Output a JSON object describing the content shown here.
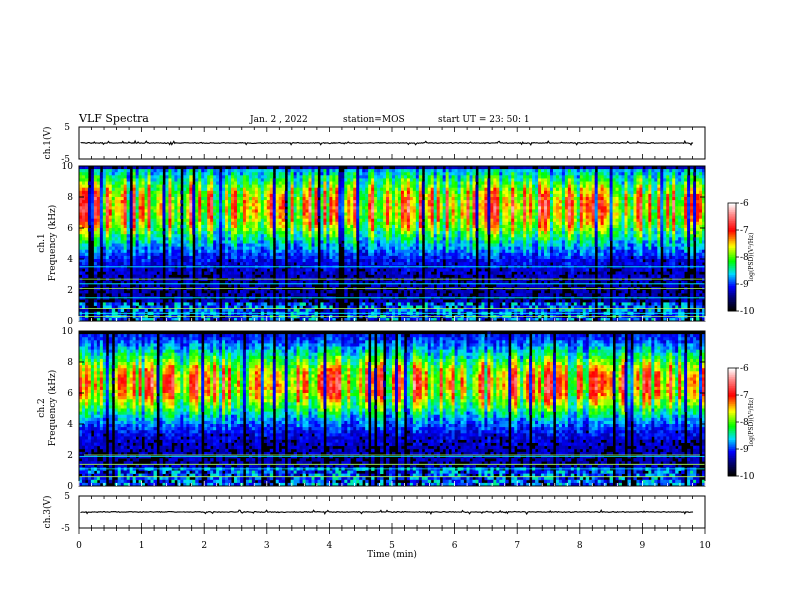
{
  "header": {
    "title": "VLF Spectra",
    "date": "Jan. 2 , 2022",
    "station": "station=MOS",
    "start_ut": "start UT =  23: 50: 1"
  },
  "colors": {
    "background": "#ffffff",
    "axes": "#000000",
    "colormap": [
      "#ffffff",
      "#ff9999",
      "#ff0000",
      "#ffff00",
      "#00ff00",
      "#00ffff",
      "#0000ff",
      "#000000"
    ]
  },
  "chart_data": [
    {
      "type": "line",
      "ylabel": "ch.1(V)",
      "ylim": [
        -5,
        5
      ],
      "yticks": [
        "5",
        "-5"
      ],
      "values_note_level": 0,
      "grid": false
    },
    {
      "type": "heatmap",
      "ylabel": "ch.1\nFrequency (kHz)",
      "ylabel_lines": [
        "ch.1",
        "Frequency (kHz)"
      ],
      "ylim": [
        0,
        10
      ],
      "yticks": [
        "0",
        "2",
        "4",
        "6",
        "8",
        "10"
      ],
      "xlim": [
        0,
        10
      ],
      "colorbar": {
        "label": "log(PSD)(V²/Hz)",
        "range": [
          -10,
          -6
        ],
        "ticks": [
          "-6",
          "-7",
          "-8",
          "-9",
          "-10"
        ]
      },
      "horizontal_lines_khz": [
        0.3,
        0.5,
        0.8,
        1.5,
        2.1,
        2.4,
        2.7,
        3.5
      ]
    },
    {
      "type": "heatmap",
      "ylabel_lines": [
        "ch.2",
        "Frequency (kHz)"
      ],
      "ylim": [
        0,
        10
      ],
      "yticks": [
        "0",
        "2",
        "4",
        "6",
        "8",
        "10"
      ],
      "xlim": [
        0,
        10
      ],
      "colorbar": {
        "label": "log(PSD)(V²/Hz)",
        "range": [
          -10,
          -6
        ],
        "ticks": [
          "-6",
          "-7",
          "-8",
          "-9",
          "-10"
        ]
      },
      "horizontal_lines_khz": [
        0.6,
        1.1,
        1.4,
        1.9,
        2.0
      ]
    },
    {
      "type": "line",
      "ylabel": "ch.3(V)",
      "ylim": [
        -5,
        5
      ],
      "yticks": [
        "5",
        "-5"
      ],
      "values_note_level": 0,
      "grid": false
    }
  ],
  "xaxis": {
    "label": "Time (min)",
    "xlim": [
      0,
      10
    ],
    "ticks": [
      "0",
      "1",
      "2",
      "3",
      "4",
      "5",
      "6",
      "7",
      "8",
      "9",
      "10"
    ]
  }
}
